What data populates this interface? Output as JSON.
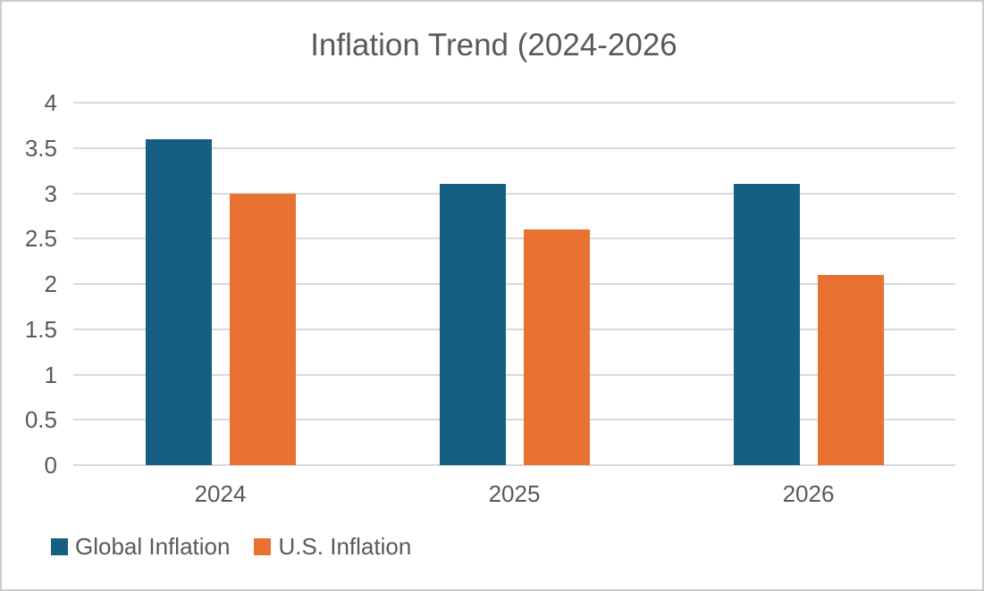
{
  "chart_data": {
    "type": "bar",
    "title": "Inflation Trend (2024-2026",
    "categories": [
      "2024",
      "2025",
      "2026"
    ],
    "series": [
      {
        "name": "Global Inflation",
        "color": "#156082",
        "values": [
          3.6,
          3.1,
          3.1
        ]
      },
      {
        "name": "U.S. Inflation",
        "color": "#E97132",
        "values": [
          3.0,
          2.6,
          2.1
        ]
      }
    ],
    "xlabel": "",
    "ylabel": "",
    "ylim": [
      0,
      4
    ],
    "ytick_step": 0.5,
    "ytick_labels": [
      "4",
      "3.5",
      "3",
      "2.5",
      "2",
      "1.5",
      "1",
      "0.5",
      "0"
    ],
    "grid": true,
    "legend_position": "bottom-left",
    "style": {
      "text_color": "#595959",
      "gridline_color": "#D9D9D9",
      "border_color": "#CBCBCB",
      "background_color": "#FFFFFF"
    }
  }
}
